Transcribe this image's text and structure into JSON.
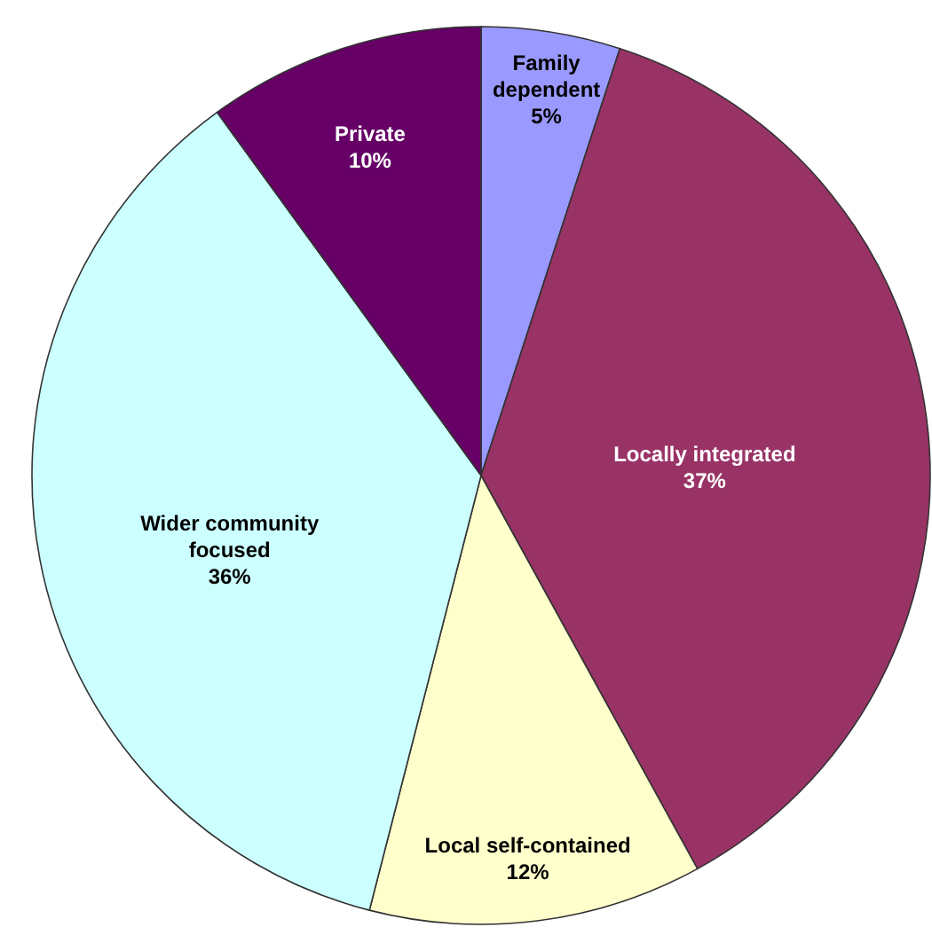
{
  "chart_data": {
    "type": "pie",
    "categories": [
      "Family dependent",
      "Locally integrated",
      "Local self-contained",
      "Wider community focused",
      "Private"
    ],
    "values": [
      5,
      37,
      12,
      36,
      10
    ],
    "colors": [
      "#9999ff",
      "#993366",
      "#ffffcc",
      "#ccffff",
      "#660066"
    ],
    "value_labels": [
      "5%",
      "37%",
      "12%",
      "36%",
      "10%"
    ]
  }
}
